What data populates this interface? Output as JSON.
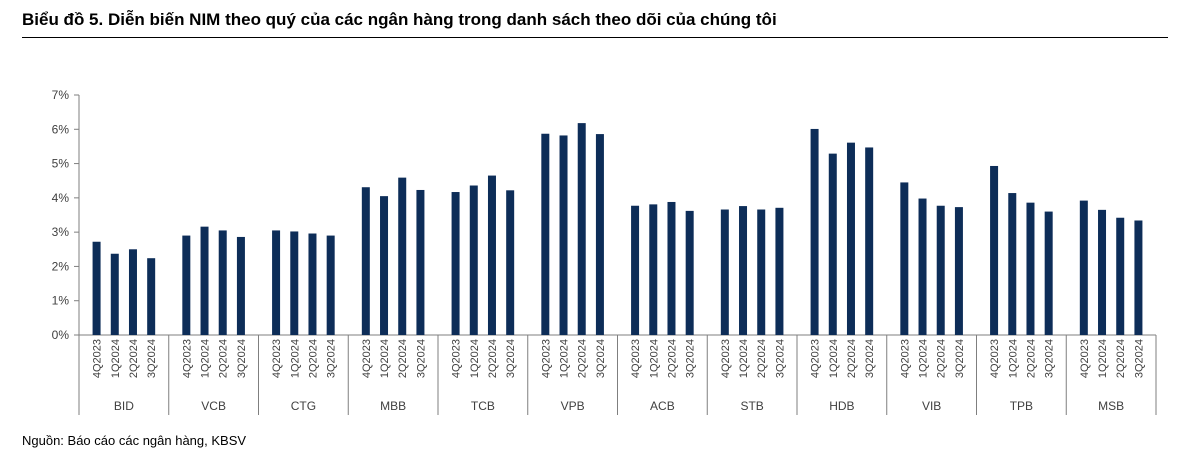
{
  "header": {
    "title": "Biểu đồ 5. Diễn biến NIM theo quý của các ngân hàng trong danh sách theo dõi của chúng tôi"
  },
  "footer": {
    "source": "Nguồn: Báo cáo các ngân hàng, KBSV"
  },
  "colors": {
    "bar": "#0d2d58",
    "axis": "#7f7f7f"
  },
  "chart_data": {
    "type": "bar",
    "y_ticks": [
      "0%",
      "1%",
      "2%",
      "3%",
      "4%",
      "5%",
      "6%",
      "7%"
    ],
    "ylim": [
      0,
      7
    ],
    "y_unit": "%",
    "grid": false,
    "legend": "none",
    "quarters": [
      "4Q2023",
      "1Q2024",
      "2Q2024",
      "3Q2024"
    ],
    "groups": [
      {
        "name": "BID",
        "values": [
          2.72,
          2.37,
          2.5,
          2.24
        ]
      },
      {
        "name": "VCB",
        "values": [
          2.9,
          3.16,
          3.05,
          2.86
        ]
      },
      {
        "name": "CTG",
        "values": [
          3.05,
          3.02,
          2.96,
          2.9
        ]
      },
      {
        "name": "MBB",
        "values": [
          4.31,
          4.05,
          4.59,
          4.23
        ]
      },
      {
        "name": "TCB",
        "values": [
          4.17,
          4.36,
          4.65,
          4.22
        ]
      },
      {
        "name": "VPB",
        "values": [
          5.87,
          5.82,
          6.18,
          5.86
        ]
      },
      {
        "name": "ACB",
        "values": [
          3.77,
          3.81,
          3.88,
          3.62
        ]
      },
      {
        "name": "STB",
        "values": [
          3.66,
          3.76,
          3.66,
          3.71
        ]
      },
      {
        "name": "HDB",
        "values": [
          6.01,
          5.29,
          5.61,
          5.47
        ]
      },
      {
        "name": "VIB",
        "values": [
          4.45,
          3.98,
          3.77,
          3.73
        ]
      },
      {
        "name": "TPB",
        "values": [
          4.93,
          4.14,
          3.86,
          3.6
        ]
      },
      {
        "name": "MSB",
        "values": [
          3.92,
          3.65,
          3.42,
          3.34
        ]
      }
    ]
  }
}
